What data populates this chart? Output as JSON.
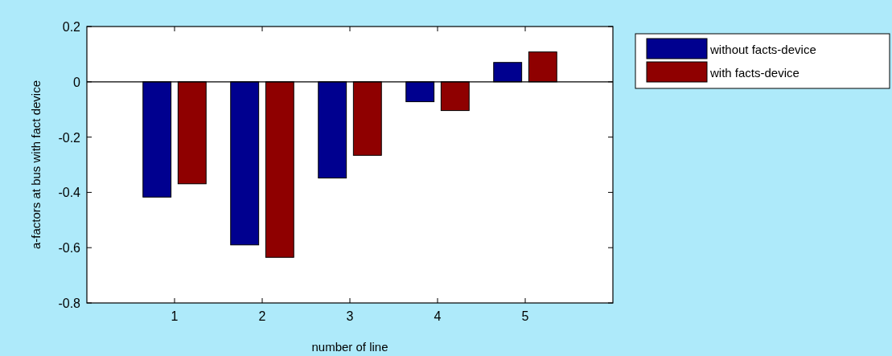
{
  "chart_data": {
    "type": "bar",
    "xlabel": "number of line",
    "ylabel": "a-factors at bus with fact device",
    "x": [
      1,
      2,
      3,
      4,
      5
    ],
    "series": [
      {
        "name": "without facts-device",
        "color": "#00008f",
        "values": [
          -0.417,
          -0.59,
          -0.348,
          -0.072,
          0.07
        ]
      },
      {
        "name": "with facts-device",
        "color": "#8f0000",
        "values": [
          -0.369,
          -0.635,
          -0.266,
          -0.104,
          0.108
        ]
      }
    ],
    "xlim": [
      0,
      6
    ],
    "xticks": [
      1,
      2,
      3,
      4,
      5
    ],
    "ylim": [
      -0.8,
      0.2
    ],
    "yticks": [
      -0.8,
      -0.6,
      -0.4,
      -0.2,
      0,
      0.2
    ],
    "ref_lines": [
      {
        "axis": "y",
        "value": 0,
        "color": "#000000"
      }
    ],
    "legend": "top right"
  }
}
